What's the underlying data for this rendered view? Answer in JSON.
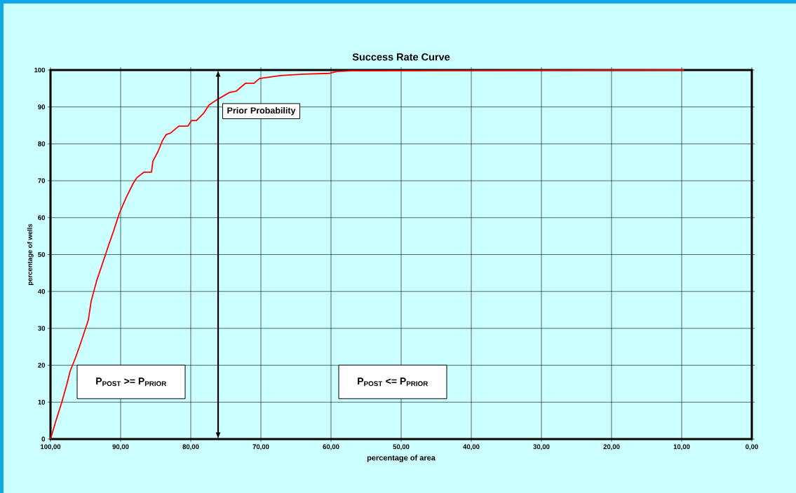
{
  "chart_data": {
    "type": "line",
    "title": "Success Rate Curve",
    "xlabel": "percentage of area",
    "ylabel": "percentage of wells",
    "xlim": [
      100,
      0
    ],
    "ylim": [
      0,
      100
    ],
    "xticks": [
      {
        "value": 100,
        "label": "100,00"
      },
      {
        "value": 90,
        "label": "90,00"
      },
      {
        "value": 80,
        "label": "80,00"
      },
      {
        "value": 70,
        "label": "70,00"
      },
      {
        "value": 60,
        "label": "60,00"
      },
      {
        "value": 50,
        "label": "50,00"
      },
      {
        "value": 40,
        "label": "40,00"
      },
      {
        "value": 30,
        "label": "30,00"
      },
      {
        "value": 20,
        "label": "20,00"
      },
      {
        "value": 10,
        "label": "10,00"
      },
      {
        "value": 0,
        "label": "0,00"
      }
    ],
    "yticks": [
      0,
      10,
      20,
      30,
      40,
      50,
      60,
      70,
      80,
      90,
      100
    ],
    "grid": true,
    "marker": "none",
    "line_style": "solid",
    "series": [
      {
        "color": "#ff0000",
        "x": [
          100,
          99.2,
          98.4,
          97.7,
          97.2,
          96.4,
          95.7,
          94.6,
          94.2,
          93.4,
          92.7,
          91.7,
          91,
          90.2,
          89.2,
          88.2,
          87.7,
          86.7,
          85.6,
          85.4,
          84.7,
          84,
          83.5,
          82.9,
          81.7,
          80.4,
          79.9,
          79.2,
          78.2,
          77.4,
          76.4,
          74.5,
          73.5,
          72.2,
          71,
          70.2,
          67.2,
          63.9,
          60.2,
          59.2,
          57.2,
          9.7
        ],
        "values": [
          0,
          5.1,
          9.9,
          14.6,
          18.4,
          22.2,
          26,
          32.3,
          37.4,
          43,
          46.9,
          52.6,
          56.4,
          61.1,
          65.5,
          69.3,
          70.8,
          72.3,
          72.3,
          75.3,
          77.8,
          81,
          82.5,
          82.9,
          84.8,
          84.8,
          86.3,
          86.3,
          88.2,
          90.5,
          91.8,
          93.9,
          94.3,
          96.4,
          96.4,
          97.7,
          98.5,
          98.9,
          99.1,
          99.6,
          99.8,
          100
        ]
      }
    ],
    "ref_lines": [
      {
        "axis": "x",
        "value": 76.1,
        "label": "Prior Probability",
        "color": "#000000",
        "line_style": "solid"
      }
    ],
    "annotations": [
      "P$_{POST}$ >= P$_{PRIOR}$",
      "P$_{POST}$ <= P$_{PRIOR}$"
    ]
  }
}
